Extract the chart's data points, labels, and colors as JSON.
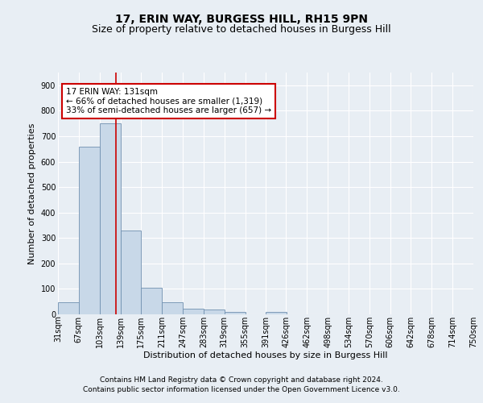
{
  "title": "17, ERIN WAY, BURGESS HILL, RH15 9PN",
  "subtitle": "Size of property relative to detached houses in Burgess Hill",
  "xlabel": "Distribution of detached houses by size in Burgess Hill",
  "ylabel": "Number of detached properties",
  "footer_line1": "Contains HM Land Registry data © Crown copyright and database right 2024.",
  "footer_line2": "Contains public sector information licensed under the Open Government Licence v3.0.",
  "bins": [
    "31sqm",
    "67sqm",
    "103sqm",
    "139sqm",
    "175sqm",
    "211sqm",
    "247sqm",
    "283sqm",
    "319sqm",
    "355sqm",
    "391sqm",
    "426sqm",
    "462sqm",
    "498sqm",
    "534sqm",
    "570sqm",
    "606sqm",
    "642sqm",
    "678sqm",
    "714sqm",
    "750sqm"
  ],
  "bin_edges": [
    31,
    67,
    103,
    139,
    175,
    211,
    247,
    283,
    319,
    355,
    391,
    426,
    462,
    498,
    534,
    570,
    606,
    642,
    678,
    714,
    750
  ],
  "bar_heights": [
    47,
    660,
    750,
    330,
    105,
    47,
    22,
    18,
    11,
    0,
    8,
    0,
    0,
    0,
    0,
    0,
    0,
    0,
    0,
    0
  ],
  "bar_color": "#c8d8e8",
  "bar_edge_color": "#7090b0",
  "vline_x": 131,
  "vline_color": "#cc0000",
  "annotation_text": "17 ERIN WAY: 131sqm\n← 66% of detached houses are smaller (1,319)\n33% of semi-detached houses are larger (657) →",
  "annotation_box_color": "white",
  "annotation_box_edge": "#cc0000",
  "ylim": [
    0,
    950
  ],
  "yticks": [
    0,
    100,
    200,
    300,
    400,
    500,
    600,
    700,
    800,
    900
  ],
  "background_color": "#e8eef4",
  "axes_background": "#e8eef4",
  "grid_color": "white",
  "title_fontsize": 10,
  "subtitle_fontsize": 9,
  "label_fontsize": 8,
  "tick_fontsize": 7,
  "annotation_fontsize": 7.5,
  "footer_fontsize": 6.5
}
